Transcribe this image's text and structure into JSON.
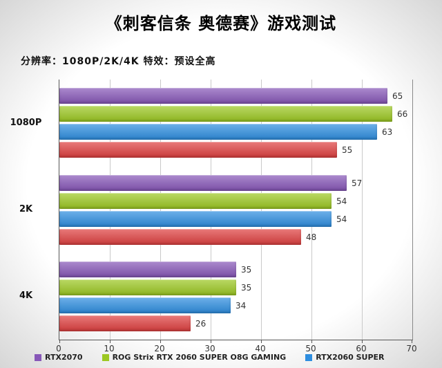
{
  "title": "《刺客信条 奥德赛》游戏测试",
  "subtitle": "分辨率：1080P/2K/4K  特效：预设全高",
  "chart_data": {
    "type": "bar",
    "orientation": "horizontal",
    "title": "《刺客信条 奥德赛》游戏测试",
    "subtitle": "分辨率：1080P/2K/4K  特效：预设全高",
    "categories": [
      "1080P",
      "2K",
      "4K"
    ],
    "series": [
      {
        "name": "RTX2070",
        "color": "#8757b8",
        "values": [
          65,
          57,
          35
        ]
      },
      {
        "name": "ROG Strix RTX 2060 SUPER O8G GAMING",
        "color": "#9cc822",
        "values": [
          66,
          54,
          35
        ]
      },
      {
        "name": "RTX2060 SUPER",
        "color": "#2e8ee0",
        "values": [
          63,
          54,
          34
        ]
      },
      {
        "name": "",
        "color": "#df4040",
        "values": [
          55,
          48,
          26
        ]
      }
    ],
    "xlim": [
      0,
      70
    ],
    "xticks": [
      0,
      10,
      20,
      30,
      40,
      50,
      60,
      70
    ],
    "grid": true,
    "legend_position": "bottom",
    "legend": [
      {
        "label": "RTX2070",
        "color": "#8757b8"
      },
      {
        "label": "ROG Strix RTX 2060 SUPER O8G GAMING",
        "color": "#9cc822"
      },
      {
        "label": "RTX2060 SUPER",
        "color": "#2e8ee0"
      }
    ]
  }
}
